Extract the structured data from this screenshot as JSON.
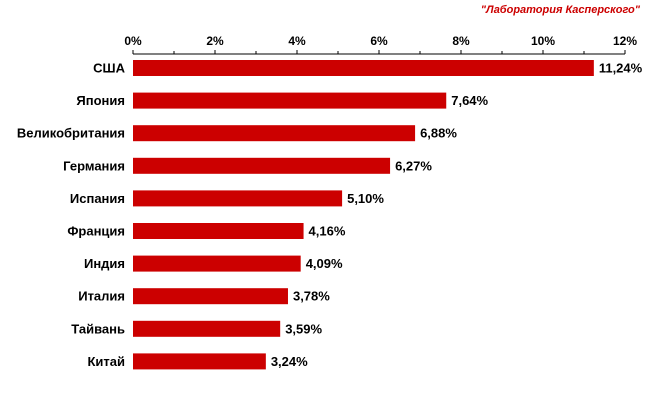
{
  "source_credit": "\"Лаборатория Касперского\"",
  "colors": {
    "bar": "#cc0000",
    "credit": "#cc0000",
    "axis": "#000000",
    "text": "#000000"
  },
  "chart_data": {
    "type": "bar",
    "orientation": "horizontal",
    "categories": [
      "США",
      "Япония",
      "Великобритания",
      "Германия",
      "Испания",
      "Франция",
      "Индия",
      "Италия",
      "Тайвань",
      "Китай"
    ],
    "values": [
      11.24,
      7.64,
      6.88,
      6.27,
      5.1,
      4.16,
      4.09,
      3.78,
      3.59,
      3.24
    ],
    "value_labels": [
      "11,24%",
      "7,64%",
      "6,88%",
      "6,27%",
      "5,10%",
      "4,16%",
      "4,09%",
      "3,78%",
      "3,59%",
      "3,24%"
    ],
    "x_ticks": [
      0,
      2,
      4,
      6,
      8,
      10,
      12
    ],
    "x_tick_labels": [
      "0%",
      "2%",
      "4%",
      "6%",
      "8%",
      "10%",
      "12%"
    ],
    "xlim": [
      0,
      12
    ],
    "axis_position": "top",
    "grid": false,
    "legend": "none"
  }
}
